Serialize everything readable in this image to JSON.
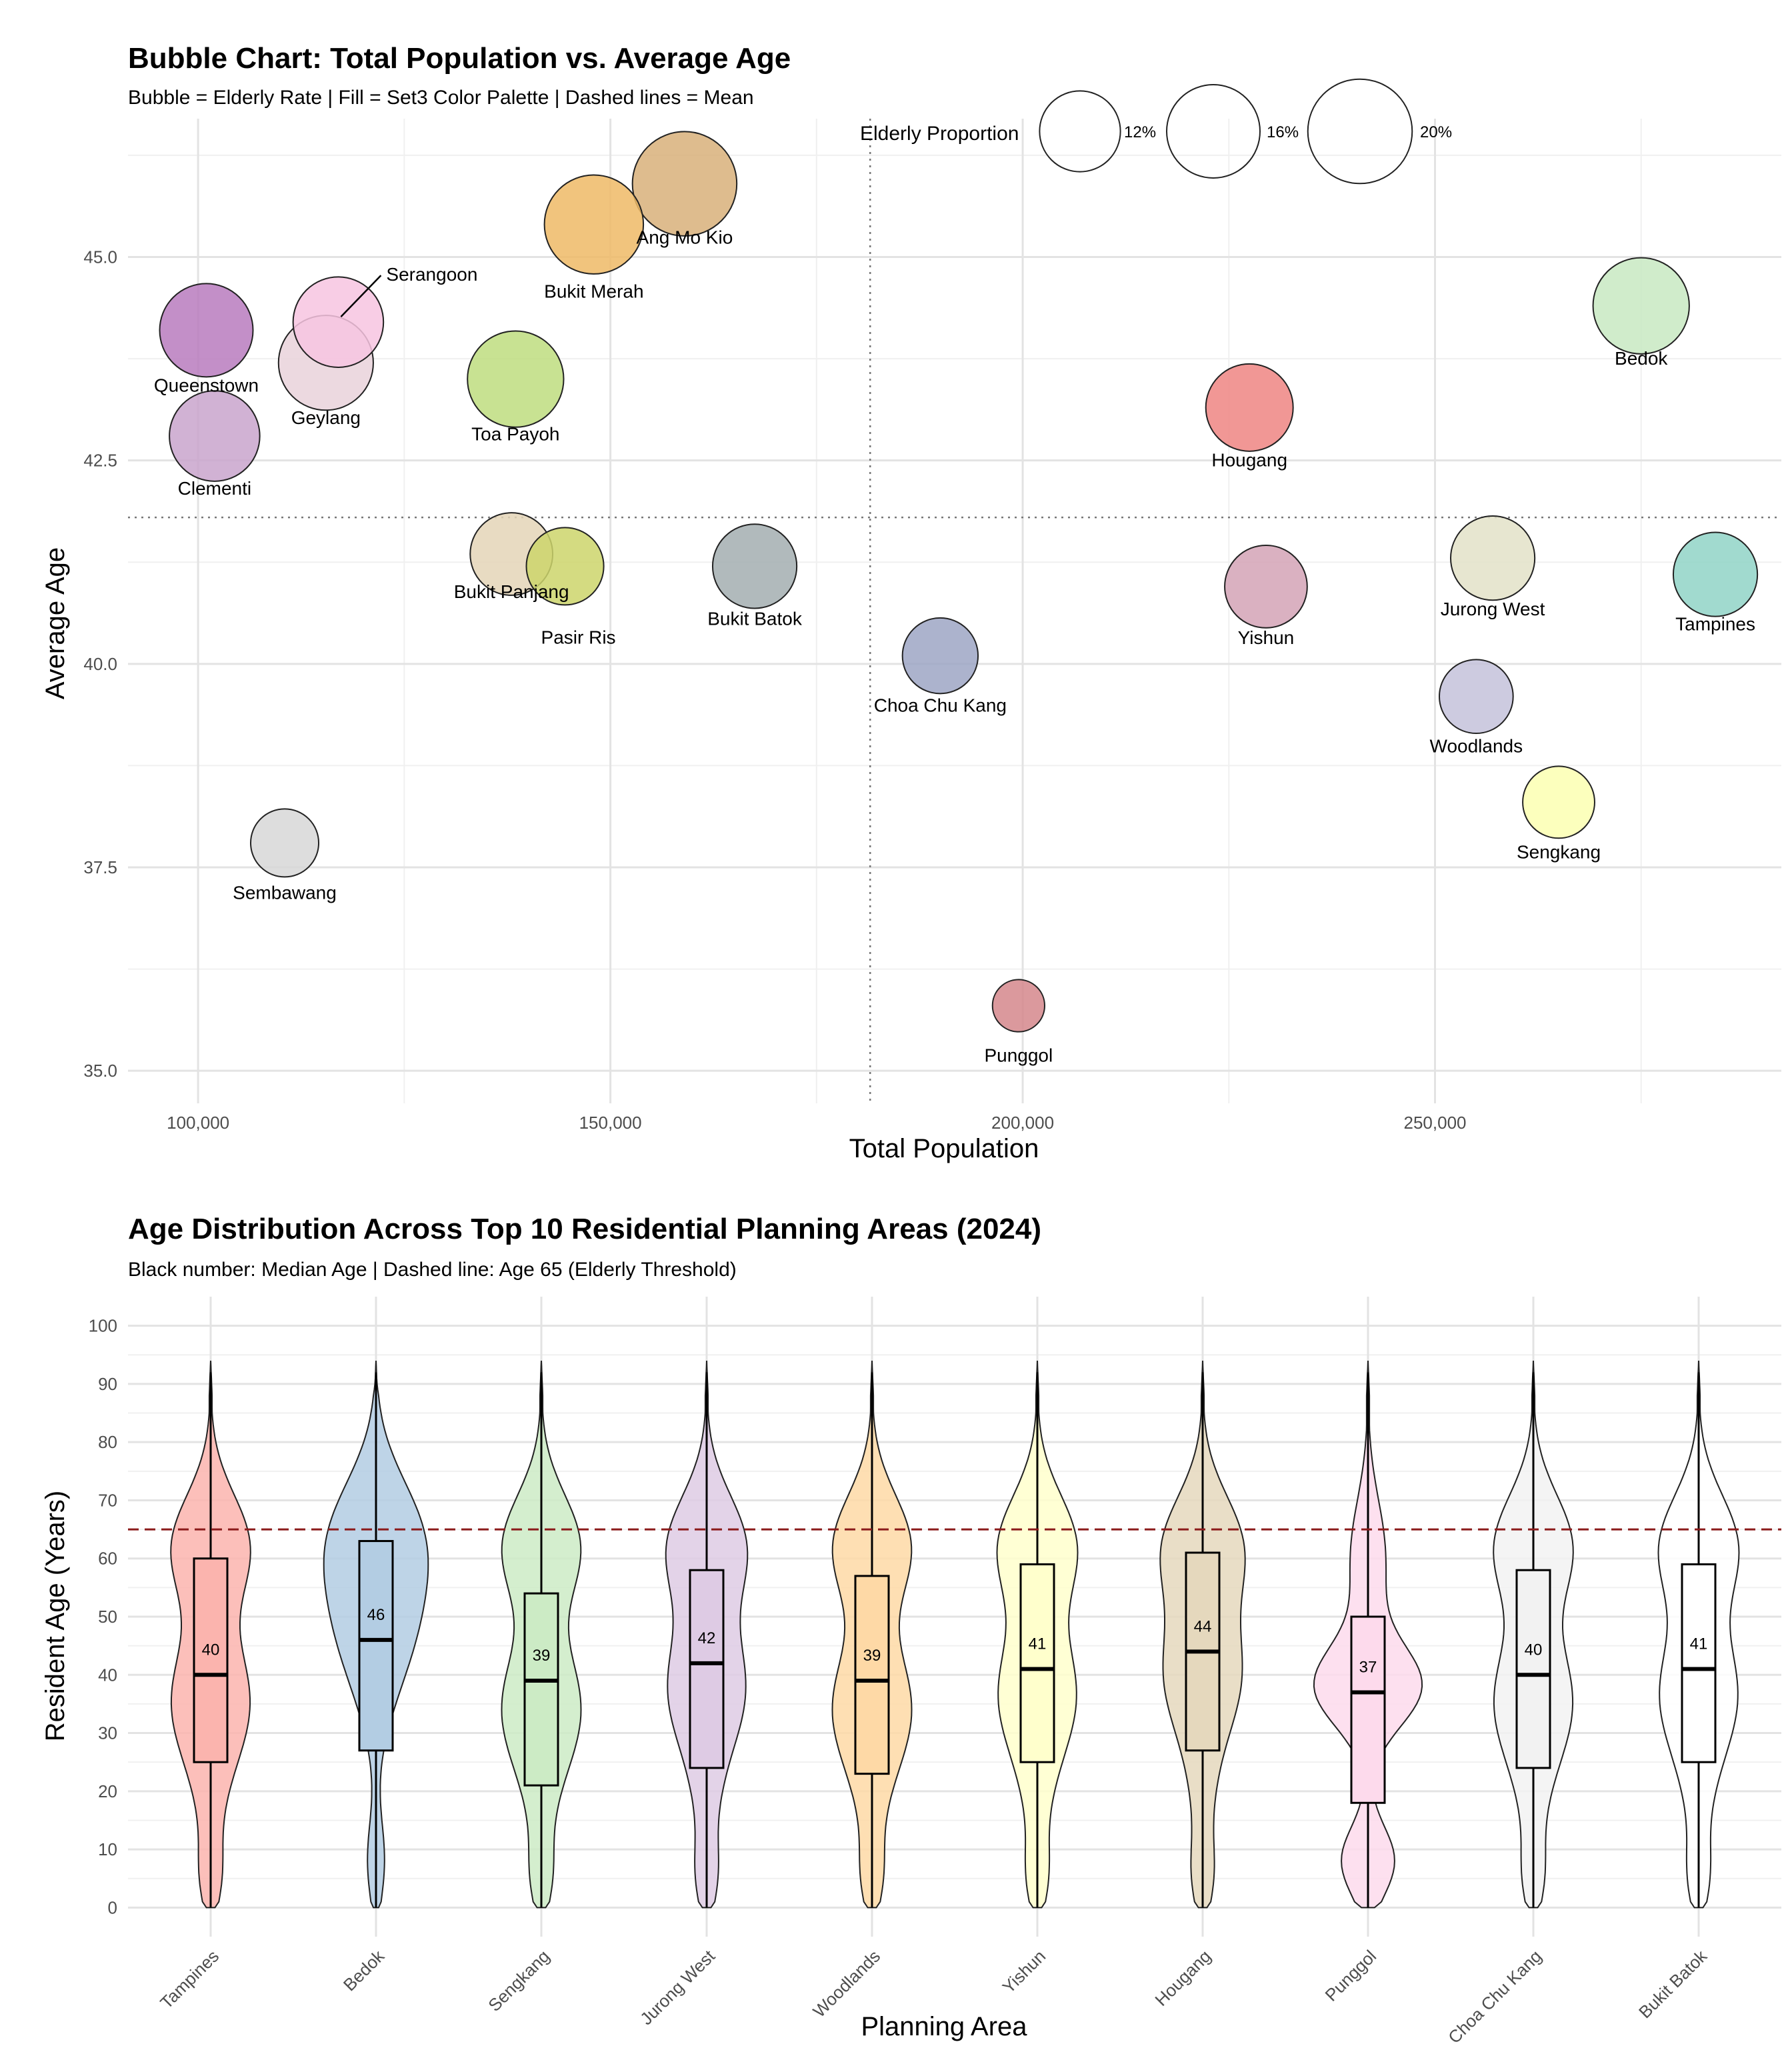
{
  "chart_data": [
    {
      "type": "scatter",
      "title": "Bubble Chart: Total Population vs. Average Age",
      "subtitle": "Bubble = Elderly Rate | Fill = Set3 Color Palette | Dashed lines = Mean",
      "xlabel": "Total Population",
      "ylabel": "Average Age",
      "xlim": [
        91500,
        292000
      ],
      "ylim": [
        34.6,
        46.7
      ],
      "xticks": [
        100000,
        150000,
        200000,
        250000
      ],
      "xtick_labels": [
        "100,000",
        "150,000",
        "200,000",
        "250,000"
      ],
      "yticks": [
        35,
        37.5,
        40,
        42.5,
        45
      ],
      "ytick_labels": [
        "35.0",
        "37.5",
        "40.0",
        "42.5",
        "45.0"
      ],
      "grid": true,
      "mean_x": 181500,
      "mean_y": 41.8,
      "legend": {
        "title": "Elderly Proportion",
        "placement": "top-right",
        "entries": [
          {
            "label": "12%",
            "value": 12
          },
          {
            "label": "16%",
            "value": 16
          },
          {
            "label": "20%",
            "value": 20
          }
        ]
      },
      "points": [
        {
          "name": "Ang Mo Kio",
          "x": 159000,
          "y": 45.9,
          "elderly": 20,
          "color": "#D8B07A"
        },
        {
          "name": "Bukit Merah",
          "x": 148000,
          "y": 45.4,
          "elderly": 18,
          "color": "#EFBA66"
        },
        {
          "name": "Serangoon",
          "x": 117000,
          "y": 44.2,
          "elderly": 15,
          "color": "#F7C4E0"
        },
        {
          "name": "Queenstown",
          "x": 101000,
          "y": 44.1,
          "elderly": 16,
          "color": "#B97BBE"
        },
        {
          "name": "Geylang",
          "x": 115500,
          "y": 43.7,
          "elderly": 16.5,
          "color": "#E9D2DB"
        },
        {
          "name": "Toa Payoh",
          "x": 138500,
          "y": 43.5,
          "elderly": 17,
          "color": "#BEDD7F"
        },
        {
          "name": "Clementi",
          "x": 102000,
          "y": 42.8,
          "elderly": 15,
          "color": "#C9A5CC"
        },
        {
          "name": "Bedok",
          "x": 275000,
          "y": 44.4,
          "elderly": 17,
          "color": "#C8E9C2"
        },
        {
          "name": "Hougang",
          "x": 227500,
          "y": 43.15,
          "elderly": 14,
          "color": "#EF8582"
        },
        {
          "name": "Bukit Panjang",
          "x": 138000,
          "y": 41.35,
          "elderly": 12.5,
          "color": "#E4D5B7"
        },
        {
          "name": "Pasir Ris",
          "x": 144500,
          "y": 41.2,
          "elderly": 11,
          "color": "#CCD56B"
        },
        {
          "name": "Bukit Batok",
          "x": 167500,
          "y": 41.2,
          "elderly": 13,
          "color": "#A3AEB0"
        },
        {
          "name": "Yishun",
          "x": 229500,
          "y": 40.95,
          "elderly": 12.5,
          "color": "#D4A3B6"
        },
        {
          "name": "Jurong West",
          "x": 257000,
          "y": 41.3,
          "elderly": 13,
          "color": "#E3E2C8"
        },
        {
          "name": "Tampines",
          "x": 284000,
          "y": 41.1,
          "elderly": 13,
          "color": "#91D4C7"
        },
        {
          "name": "Choa Chu Kang",
          "x": 190000,
          "y": 40.1,
          "elderly": 10.5,
          "color": "#9DA6C4"
        },
        {
          "name": "Woodlands",
          "x": 255000,
          "y": 39.6,
          "elderly": 10,
          "color": "#C4C2DB"
        },
        {
          "name": "Sengkang",
          "x": 265000,
          "y": 38.3,
          "elderly": 9.5,
          "color": "#FCFFB1"
        },
        {
          "name": "Sembawang",
          "x": 110500,
          "y": 37.8,
          "elderly": 8.5,
          "color": "#D7D7D7"
        },
        {
          "name": "Punggol",
          "x": 199500,
          "y": 35.8,
          "elderly": 5,
          "color": "#D5878C"
        }
      ]
    },
    {
      "type": "violin",
      "title": "Age Distribution Across Top 10 Residential Planning Areas (2024)",
      "subtitle": "Black number: Median Age | Dashed line: Age 65 (Elderly Threshold)",
      "xlabel": "Planning Area",
      "ylabel": "Resident Age (Years)",
      "ylim": [
        -5,
        105
      ],
      "yticks": [
        0,
        10,
        20,
        30,
        40,
        50,
        60,
        70,
        80,
        90,
        100
      ],
      "grid": true,
      "threshold": 65,
      "threshold_color": "#8B1A1A",
      "categories": [
        "Tampines",
        "Bedok",
        "Sengkang",
        "Jurong West",
        "Woodlands",
        "Yishun",
        "Hougang",
        "Punggol",
        "Choa Chu Kang",
        "Bukit Batok"
      ],
      "series": [
        {
          "name": "Tampines",
          "q1": 25,
          "median": 40,
          "q3": 60,
          "median_label": "40",
          "color": "#FBB4AE"
        },
        {
          "name": "Bedok",
          "q1": 27,
          "median": 46,
          "q3": 63,
          "median_label": "46",
          "color": "#B3CDE3"
        },
        {
          "name": "Sengkang",
          "q1": 21,
          "median": 39,
          "q3": 54,
          "median_label": "39",
          "color": "#CCEBC5"
        },
        {
          "name": "Jurong West",
          "q1": 24,
          "median": 42,
          "q3": 58,
          "median_label": "42",
          "color": "#DECBE4"
        },
        {
          "name": "Woodlands",
          "q1": 23,
          "median": 39,
          "q3": 57,
          "median_label": "39",
          "color": "#FED9A6"
        },
        {
          "name": "Yishun",
          "q1": 25,
          "median": 41,
          "q3": 59,
          "median_label": "41",
          "color": "#FFFFCC"
        },
        {
          "name": "Hougang",
          "q1": 27,
          "median": 44,
          "q3": 61,
          "median_label": "44",
          "color": "#E5D8BD"
        },
        {
          "name": "Punggol",
          "q1": 18,
          "median": 37,
          "q3": 50,
          "median_label": "37",
          "color": "#FDDAEC"
        },
        {
          "name": "Choa Chu Kang",
          "q1": 24,
          "median": 40,
          "q3": 58,
          "median_label": "40",
          "color": "#F2F2F2"
        },
        {
          "name": "Bukit Batok",
          "q1": 25,
          "median": 41,
          "q3": 59,
          "median_label": "41",
          "color": "#FFFFFF"
        }
      ]
    }
  ]
}
